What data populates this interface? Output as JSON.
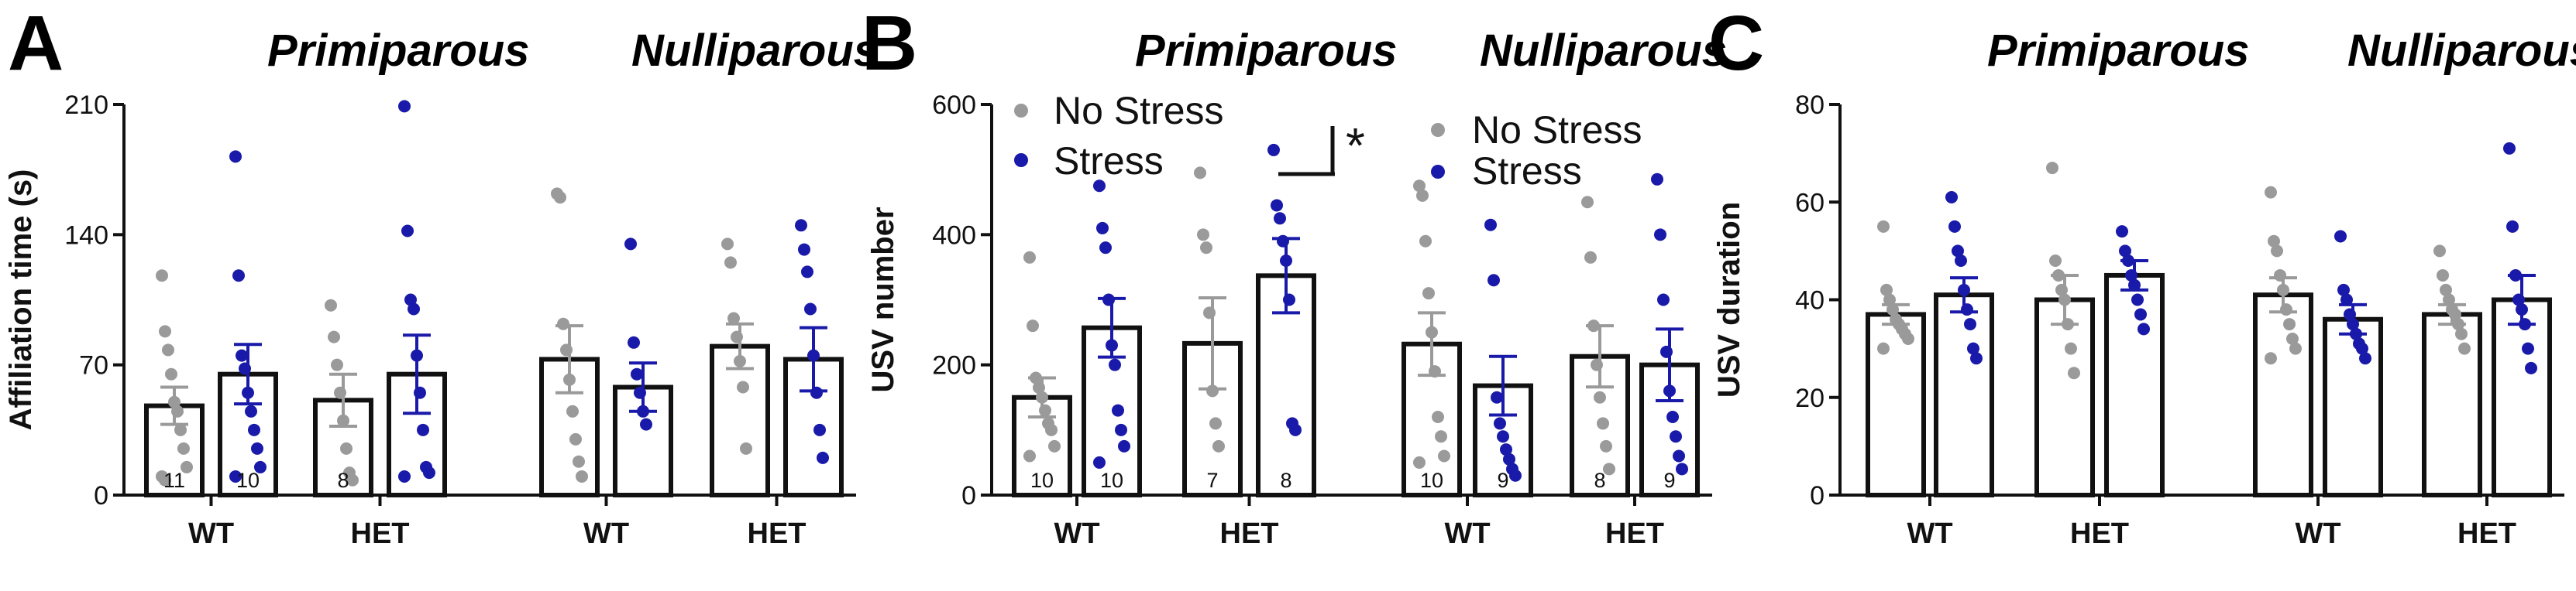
{
  "colors": {
    "no_stress": "#9a9a9a",
    "stress": "#1a1aaa",
    "axis": "#111111"
  },
  "legend": {
    "no_stress": "No Stress",
    "stress": "Stress"
  },
  "chart_data": [
    {
      "type": "bar",
      "panel": "A",
      "ylabel": "Affiliation time (s)",
      "ylim": [
        0,
        210
      ],
      "yticks": [
        "0",
        "70",
        "140",
        "210"
      ],
      "group_titles": [
        "Primiparous",
        "Nulliparous"
      ],
      "categories": [
        "WT",
        "HET",
        "WT",
        "HET"
      ],
      "series": [
        {
          "name": "No Stress",
          "means": [
            48,
            51,
            73,
            80
          ],
          "sems": [
            10,
            14,
            18,
            12
          ],
          "n_labels": [
            "11",
            "8",
            "",
            ""
          ],
          "points": [
            [
              118,
              88,
              78,
              65,
              50,
              45,
              35,
              25,
              15,
              10,
              8
            ],
            [
              102,
              85,
              70,
              55,
              40,
              25,
              12,
              8
            ],
            [
              162,
              160,
              92,
              78,
              62,
              45,
              30,
              18,
              10
            ],
            [
              135,
              125,
              95,
              85,
              72,
              58,
              25
            ]
          ]
        },
        {
          "name": "Stress",
          "means": [
            65,
            65,
            58,
            73
          ],
          "sems": [
            16,
            21,
            13,
            17
          ],
          "n_labels": [
            "10",
            "",
            "",
            ""
          ],
          "points": [
            [
              182,
              118,
              75,
              68,
              55,
              45,
              35,
              25,
              15,
              10
            ],
            [
              209,
              142,
              105,
              100,
              75,
              55,
              35,
              15,
              12,
              10
            ],
            [
              135,
              82,
              65,
              55,
              45,
              38
            ],
            [
              145,
              132,
              120,
              100,
              75,
              55,
              35,
              20
            ]
          ]
        }
      ]
    },
    {
      "type": "bar",
      "panel": "B",
      "ylabel": "USV number",
      "ylim": [
        0,
        600
      ],
      "yticks": [
        "0",
        "200",
        "400",
        "600"
      ],
      "group_titles": [
        "Primiparous",
        "Nulliparous"
      ],
      "categories": [
        "WT",
        "HET",
        "WT",
        "HET"
      ],
      "significance": "*",
      "series": [
        {
          "name": "No Stress",
          "means": [
            150,
            233,
            232,
            213
          ],
          "sems": [
            30,
            70,
            48,
            47
          ],
          "n_labels": [
            "10",
            "7",
            "10",
            "8"
          ],
          "points": [
            [
              365,
              260,
              180,
              165,
              150,
              130,
              110,
              100,
              75,
              60
            ],
            [
              495,
              400,
              380,
              280,
              160,
              110,
              75
            ],
            [
              475,
              460,
              390,
              310,
              250,
              190,
              120,
              90,
              60,
              50
            ],
            [
              450,
              365,
              260,
              200,
              150,
              110,
              75,
              40
            ]
          ]
        },
        {
          "name": "Stress",
          "means": [
            257,
            337,
            168,
            200
          ],
          "sems": [
            45,
            57,
            45,
            55
          ],
          "n_labels": [
            "10",
            "8",
            "9",
            "9"
          ],
          "points": [
            [
              475,
              410,
              380,
              300,
              230,
              200,
              130,
              100,
              75,
              50
            ],
            [
              530,
              445,
              425,
              390,
              360,
              300,
              110,
              100
            ],
            [
              415,
              330,
              150,
              110,
              90,
              70,
              55,
              40,
              30
            ],
            [
              485,
              400,
              300,
              220,
              160,
              120,
              90,
              60,
              40
            ]
          ]
        }
      ]
    },
    {
      "type": "bar",
      "panel": "C",
      "ylabel": "USV duration",
      "ylim": [
        0,
        80
      ],
      "yticks": [
        "0",
        "20",
        "40",
        "60",
        "80"
      ],
      "group_titles": [
        "Primiparous",
        "Nulliparous"
      ],
      "categories": [
        "WT",
        "HET",
        "WT",
        "HET"
      ],
      "series": [
        {
          "name": "No Stress",
          "means": [
            37,
            40,
            41,
            37
          ],
          "sems": [
            2,
            5,
            3.5,
            2
          ],
          "n_labels": [
            "",
            "",
            "",
            ""
          ],
          "points": [
            [
              55,
              42,
              40,
              38,
              36,
              35,
              34,
              33,
              32,
              30
            ],
            [
              67,
              48,
              45,
              42,
              40,
              35,
              30,
              25
            ],
            [
              62,
              52,
              50,
              45,
              42,
              38,
              35,
              32,
              30,
              28
            ],
            [
              50,
              45,
              42,
              40,
              38,
              37,
              35,
              33,
              30
            ]
          ]
        },
        {
          "name": "Stress",
          "means": [
            41,
            45,
            36,
            40
          ],
          "sems": [
            3.5,
            3,
            3,
            5
          ],
          "n_labels": [
            "",
            "",
            "",
            ""
          ],
          "points": [
            [
              61,
              55,
              50,
              48,
              42,
              38,
              35,
              30,
              28
            ],
            [
              54,
              50,
              48,
              45,
              43,
              40,
              37,
              34
            ],
            [
              53,
              42,
              40,
              37,
              35,
              33,
              31,
              30,
              28
            ],
            [
              71,
              55,
              45,
              40,
              38,
              35,
              30,
              26
            ]
          ]
        }
      ]
    }
  ]
}
